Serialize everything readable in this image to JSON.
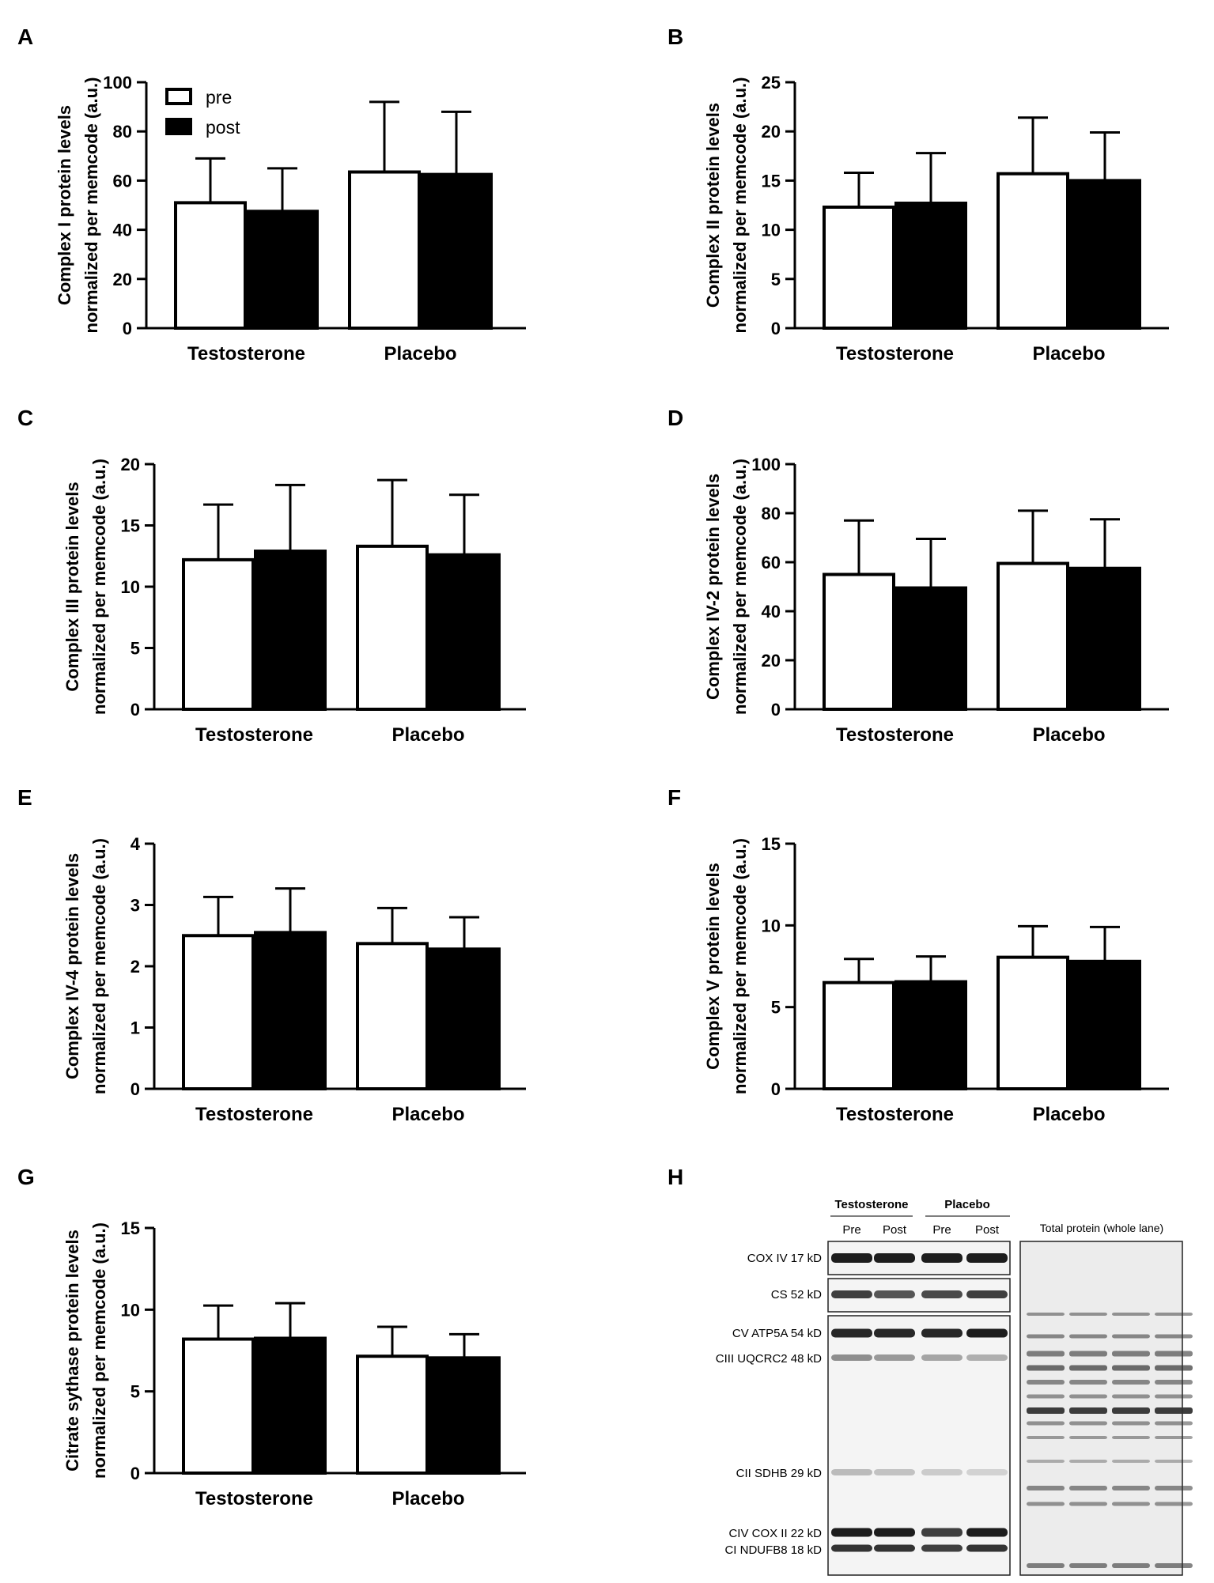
{
  "chart_data": [
    {
      "panel": "A",
      "type": "bar",
      "ylabel_lines": [
        "Complex I protein levels",
        "normalized per memcode (a.u.)"
      ],
      "categories": [
        "Testosterone",
        "Placebo"
      ],
      "ylim": [
        0,
        100
      ],
      "yticks": [
        0,
        20,
        40,
        60,
        80,
        100
      ],
      "series": [
        {
          "name": "pre",
          "values": [
            51,
            63.5
          ],
          "errors": [
            18,
            28.5
          ]
        },
        {
          "name": "post",
          "values": [
            47.5,
            62.5
          ],
          "errors": [
            17.5,
            25.5
          ]
        }
      ],
      "legend": {
        "position": "top-left",
        "entries": [
          "pre",
          "post"
        ]
      }
    },
    {
      "panel": "B",
      "type": "bar",
      "ylabel_lines": [
        "Complex II protein levels",
        "normalized per memcode (a.u.)"
      ],
      "categories": [
        "Testosterone",
        "Placebo"
      ],
      "ylim": [
        0,
        25
      ],
      "yticks": [
        0,
        5,
        10,
        15,
        20,
        25
      ],
      "series": [
        {
          "name": "pre",
          "values": [
            12.3,
            15.7
          ],
          "errors": [
            3.5,
            5.7
          ]
        },
        {
          "name": "post",
          "values": [
            12.7,
            15
          ],
          "errors": [
            5.1,
            4.9
          ]
        }
      ]
    },
    {
      "panel": "C",
      "type": "bar",
      "ylabel_lines": [
        "Complex III protein levels",
        "normalized per memcode (a.u.)"
      ],
      "categories": [
        "Testosterone",
        "Placebo"
      ],
      "ylim": [
        0,
        20
      ],
      "yticks": [
        0,
        5,
        10,
        15,
        20
      ],
      "series": [
        {
          "name": "pre",
          "values": [
            12.2,
            13.3
          ],
          "errors": [
            4.5,
            5.4
          ]
        },
        {
          "name": "post",
          "values": [
            12.9,
            12.6
          ],
          "errors": [
            5.4,
            4.9
          ]
        }
      ]
    },
    {
      "panel": "D",
      "type": "bar",
      "ylabel_lines": [
        "Complex IV-2 protein levels",
        "normalized per memcode (a.u.)"
      ],
      "categories": [
        "Testosterone",
        "Placebo"
      ],
      "ylim": [
        0,
        100
      ],
      "yticks": [
        0,
        20,
        40,
        60,
        80,
        100
      ],
      "series": [
        {
          "name": "pre",
          "values": [
            55,
            59.5
          ],
          "errors": [
            22,
            21.5
          ]
        },
        {
          "name": "post",
          "values": [
            49.5,
            57.5
          ],
          "errors": [
            20,
            20
          ]
        }
      ]
    },
    {
      "panel": "E",
      "type": "bar",
      "ylabel_lines": [
        "Complex IV-4 protein levels",
        "normalized per memcode (a.u.)"
      ],
      "categories": [
        "Testosterone",
        "Placebo"
      ],
      "ylim": [
        0,
        4
      ],
      "yticks": [
        0,
        1,
        2,
        3,
        4
      ],
      "series": [
        {
          "name": "pre",
          "values": [
            2.5,
            2.37
          ],
          "errors": [
            0.63,
            0.58
          ]
        },
        {
          "name": "post",
          "values": [
            2.55,
            2.28
          ],
          "errors": [
            0.72,
            0.52
          ]
        }
      ]
    },
    {
      "panel": "F",
      "type": "bar",
      "ylabel_lines": [
        "Complex V protein levels",
        "normalized per memcode (a.u.)"
      ],
      "categories": [
        "Testosterone",
        "Placebo"
      ],
      "ylim": [
        0,
        15
      ],
      "yticks": [
        0,
        5,
        10,
        15
      ],
      "series": [
        {
          "name": "pre",
          "values": [
            6.5,
            8.05
          ],
          "errors": [
            1.45,
            1.9
          ]
        },
        {
          "name": "post",
          "values": [
            6.55,
            7.8
          ],
          "errors": [
            1.55,
            2.1
          ]
        }
      ]
    },
    {
      "panel": "G",
      "type": "bar",
      "ylabel_lines": [
        "Citrate sythase protein levels",
        "normalized per memcode (a.u.)"
      ],
      "categories": [
        "Testosterone",
        "Placebo"
      ],
      "ylim": [
        0,
        15
      ],
      "yticks": [
        0,
        5,
        10,
        15
      ],
      "series": [
        {
          "name": "pre",
          "values": [
            8.2,
            7.15
          ],
          "errors": [
            2.05,
            1.8
          ]
        },
        {
          "name": "post",
          "values": [
            8.25,
            7.05
          ],
          "errors": [
            2.15,
            1.45
          ]
        }
      ]
    }
  ],
  "blot": {
    "panel": "H",
    "group_labels": [
      "Testosterone",
      "Placebo"
    ],
    "lane_labels": [
      "Pre",
      "Post",
      "Pre",
      "Post"
    ],
    "total_protein_label": "Total protein (whole lane)",
    "band_labels": [
      "COX IV 17 kD",
      "CS 52 kD",
      "CV ATP5A 54 kD",
      "CIII UQCRC2 48 kD",
      "CII SDHB 29 kD",
      "CIV COX II 22 kD",
      "CI NDUFB8 18 kD"
    ]
  },
  "colors": {
    "pre": "#ffffff",
    "post": "#000000",
    "axis": "#000000",
    "blot_bg": "#f4f4f4",
    "band": "#111111"
  }
}
